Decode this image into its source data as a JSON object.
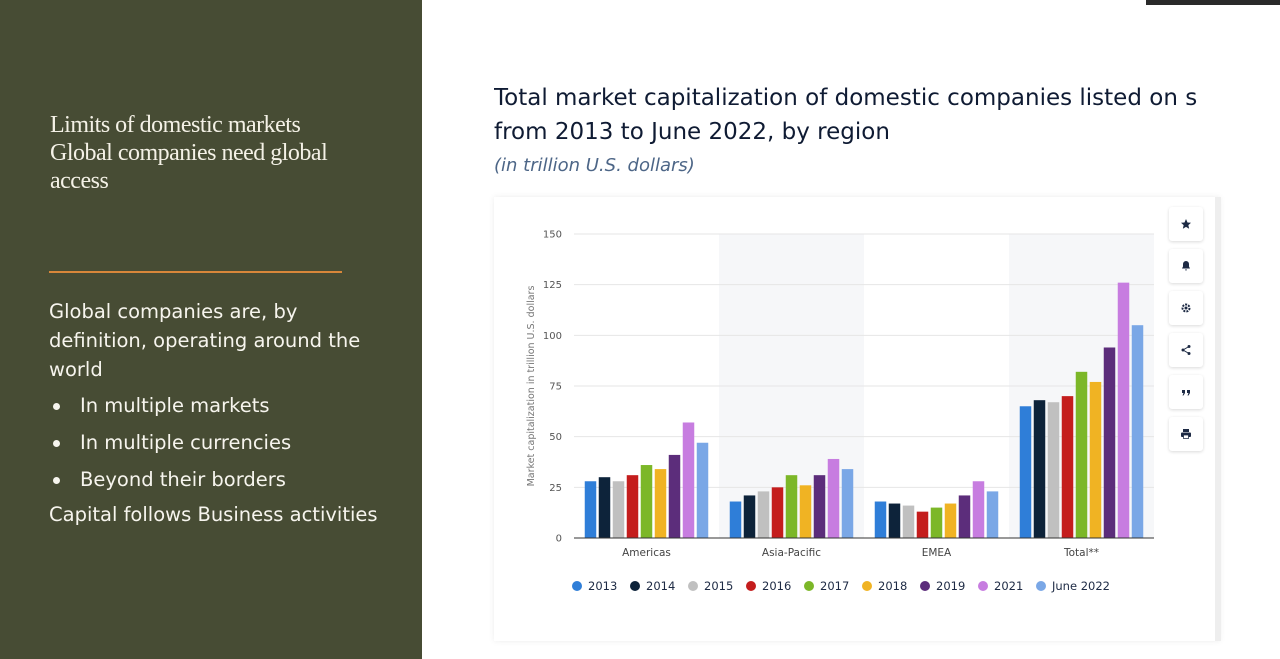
{
  "slide": {
    "heading_lines": [
      "Limits of domestic markets",
      "Global companies need global",
      "access"
    ],
    "intro": "Global companies are, by definition, operating around the world",
    "bullets": [
      "In multiple markets",
      "In multiple currencies",
      "Beyond their borders"
    ],
    "closing": "Capital follows Business activities"
  },
  "colors": {
    "panel": "#474c34",
    "accent_rule": "#d8873a"
  },
  "toolbar": {
    "icons": [
      "star-icon",
      "bell-icon",
      "gear-icon",
      "share-icon",
      "quote-icon",
      "print-icon"
    ]
  },
  "chart_data": {
    "type": "bar",
    "title_line1": "Total market capitalization of domestic companies listed on s",
    "title_line2": "from 2013 to June 2022, by region",
    "subtitle": "(in trillion U.S. dollars)",
    "ylabel": "Market capitalization in trillion U.S. dollars",
    "xlabel": "",
    "ylim": [
      0,
      150
    ],
    "yticks": [
      0,
      25,
      50,
      75,
      100,
      125,
      150
    ],
    "grid": true,
    "legend_position": "bottom",
    "categories": [
      "Americas",
      "Asia-Pacific",
      "EMEA",
      "Total**"
    ],
    "series": [
      {
        "name": "2013",
        "color": "#2f7ed8",
        "values": [
          28,
          18,
          18,
          65
        ]
      },
      {
        "name": "2014",
        "color": "#0d233a",
        "values": [
          30,
          21,
          17,
          68
        ]
      },
      {
        "name": "2015",
        "color": "#c0c0c0",
        "values": [
          28,
          23,
          16,
          67
        ]
      },
      {
        "name": "2016",
        "color": "#c41d1d",
        "values": [
          31,
          25,
          13,
          70
        ]
      },
      {
        "name": "2017",
        "color": "#7cb728",
        "values": [
          36,
          31,
          15,
          82
        ]
      },
      {
        "name": "2018",
        "color": "#f0b323",
        "values": [
          34,
          26,
          17,
          77
        ]
      },
      {
        "name": "2019",
        "color": "#5c2d7b",
        "values": [
          41,
          31,
          21,
          94
        ]
      },
      {
        "name": "2021",
        "color": "#c77de0",
        "values": [
          57,
          39,
          28,
          126
        ]
      },
      {
        "name": "June 2022",
        "color": "#7aa7e6",
        "values": [
          47,
          34,
          23,
          105
        ]
      }
    ]
  }
}
